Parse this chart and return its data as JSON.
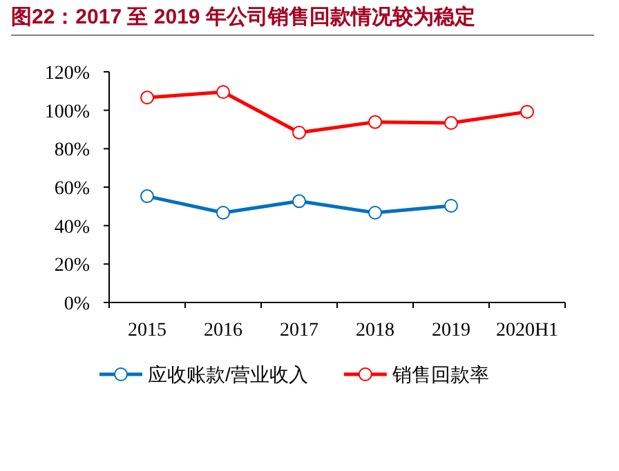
{
  "chart_data": {
    "type": "line",
    "title": "图22：2017 至 2019 年公司销售回款情况较为稳定",
    "categories": [
      "2015",
      "2016",
      "2017",
      "2018",
      "2019",
      "2020H1"
    ],
    "series": [
      {
        "name": "应收账款/营业收入",
        "color": "#0070c0",
        "values": [
          55.3,
          46.7,
          52.7,
          46.7,
          50.3,
          null
        ]
      },
      {
        "name": "销售回款率",
        "color": "#ff0000",
        "values": [
          106.6,
          109.5,
          88.4,
          93.9,
          93.4,
          99.2
        ]
      }
    ],
    "ylim": [
      0,
      120
    ],
    "yticks": [
      {
        "value": 0,
        "label": "0%"
      },
      {
        "value": 20,
        "label": "20%"
      },
      {
        "value": 40,
        "label": "40%"
      },
      {
        "value": 60,
        "label": "60%"
      },
      {
        "value": 80,
        "label": "80%"
      },
      {
        "value": 100,
        "label": "100%"
      },
      {
        "value": 120,
        "label": "120%"
      }
    ],
    "marker": "circle",
    "line_style": "solid",
    "legend": "bottom"
  }
}
